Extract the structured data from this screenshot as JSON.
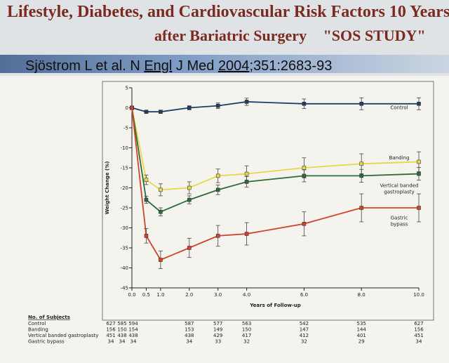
{
  "title_line1": "Lifestyle, Diabetes, and Cardiovascular Risk Factors 10 Years",
  "title_line2": "after Bariatric Surgery",
  "title_study": "\"SOS STUDY\"",
  "citation": {
    "prefix": "Sjöstrom L et al. N ",
    "journal_word": "Engl",
    "middle": " J Med ",
    "year": "2004",
    "suffix": ";351:2683-93"
  },
  "chart_data": {
    "type": "line",
    "xlabel": "Years of Follow-up",
    "ylabel": "Weight Change (%)",
    "x_ticks": [
      "0.0",
      "0.5",
      "1.0",
      "2.0",
      "3.0",
      "4.0",
      "6.0",
      "8.0",
      "10.0"
    ],
    "y_ticks": [
      5,
      0,
      -5,
      -10,
      -15,
      -20,
      -25,
      -30,
      -35,
      -40,
      -45
    ],
    "xlim": [
      0,
      10
    ],
    "ylim": [
      -45,
      5
    ],
    "x": [
      0,
      0.5,
      1,
      2,
      3,
      4,
      6,
      8,
      10
    ],
    "series": [
      {
        "name": "Control",
        "color": "#1f3f66",
        "values": [
          0,
          -1,
          -1,
          0,
          0.5,
          1.5,
          1,
          1,
          1
        ],
        "err": [
          0,
          0.3,
          0.4,
          0.5,
          0.7,
          0.9,
          1.2,
          1.5,
          1.5
        ]
      },
      {
        "name": "Banding",
        "color": "#e6d84a",
        "values": [
          0,
          -18,
          -20.5,
          -20,
          -17,
          -16.5,
          -15,
          -14,
          -13.5
        ],
        "err": [
          0,
          1.2,
          1.5,
          1.5,
          1.7,
          2,
          2.5,
          2.5,
          2.5
        ]
      },
      {
        "name": "Vertical banded gastroplasty",
        "color": "#2e6b3a",
        "values": [
          0,
          -23,
          -26,
          -23,
          -20.5,
          -18.5,
          -17,
          -17,
          -16.5
        ],
        "err": [
          0,
          0.9,
          1,
          1,
          1.2,
          1.3,
          1.5,
          1.6,
          1.6
        ]
      },
      {
        "name": "Gastric bypass",
        "color": "#d0442a",
        "values": [
          0,
          -32,
          -38,
          -35,
          -32,
          -31.5,
          -29,
          -25,
          -25
        ],
        "err": [
          0,
          1.8,
          2.2,
          2.4,
          2.6,
          2.8,
          3,
          3.5,
          3.5
        ]
      }
    ],
    "legend_labels": [
      {
        "series": "Control",
        "lines": [
          "Control"
        ],
        "y": 0
      },
      {
        "series": "Banding",
        "lines": [
          "Banding"
        ],
        "y": -12.5
      },
      {
        "series": "Vertical banded gastroplasty",
        "lines": [
          "Vertical banded",
          "gastroplasty"
        ],
        "y": -19.5
      },
      {
        "series": "Gastric bypass",
        "lines": [
          "Gastric",
          "bypass"
        ],
        "y": -27.5
      }
    ]
  },
  "subjects_table": {
    "header": "No. of Subjects",
    "rows": [
      {
        "label": "Control",
        "counts": [
          "627",
          "585",
          "594",
          "587",
          "577",
          "563",
          "542",
          "535",
          "627"
        ]
      },
      {
        "label": "Banding",
        "counts": [
          "156",
          "150",
          "154",
          "153",
          "149",
          "150",
          "147",
          "144",
          "156"
        ]
      },
      {
        "label": "Vertical banded gastroplasty",
        "counts": [
          "451",
          "438",
          "438",
          "438",
          "429",
          "417",
          "412",
          "401",
          "451"
        ]
      },
      {
        "label": "Gastric bypass",
        "counts": [
          "34",
          "34",
          "34",
          "34",
          "33",
          "32",
          "32",
          "29",
          "34"
        ]
      }
    ]
  }
}
